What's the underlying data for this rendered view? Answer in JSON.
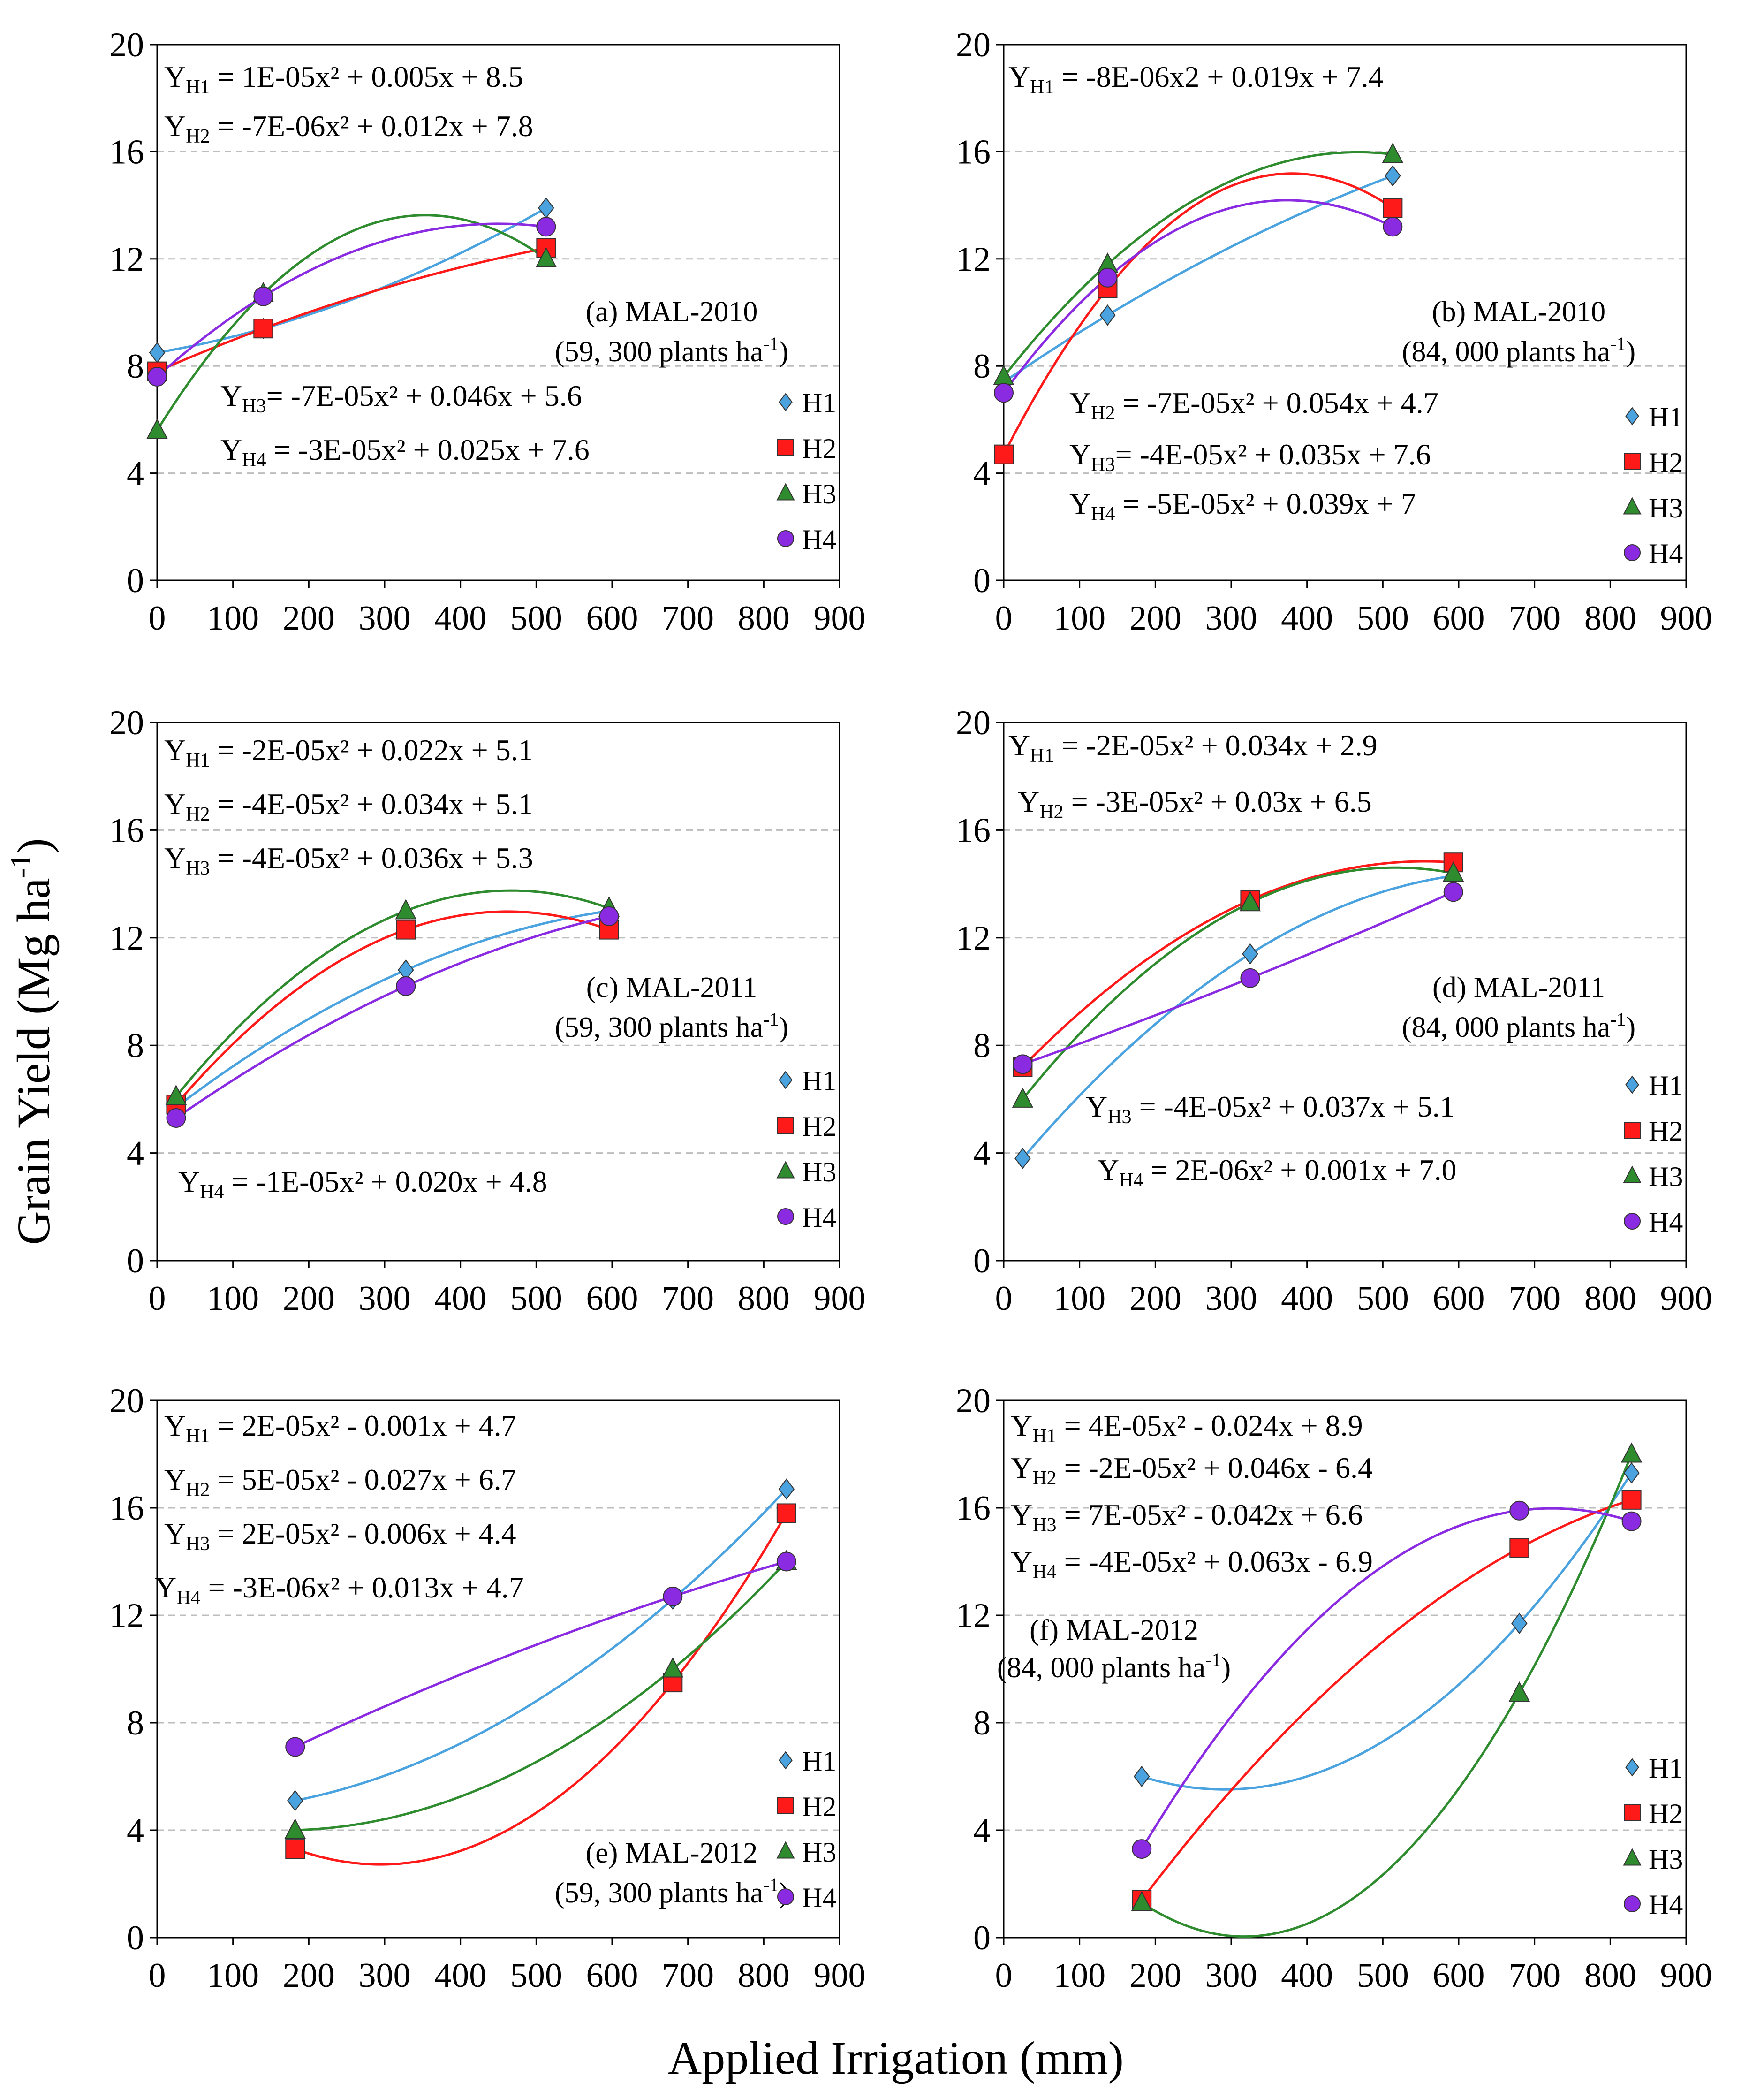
{
  "figure": {
    "xlabel": "Applied Irrigation (mm)",
    "ylabel_main": "Grain Yield (Mg ha",
    "ylabel_sup": "-1",
    "ylabel_close": ")"
  },
  "series_styles": {
    "H1": {
      "marker": "diamond",
      "fill": "#4aa3df",
      "line": "#4aa3df"
    },
    "H2": {
      "marker": "square",
      "fill": "#ff1a1a",
      "line": "#ff1a1a"
    },
    "H3": {
      "marker": "triangle",
      "fill": "#2e8b2e",
      "line": "#2e8b2e"
    },
    "H4": {
      "marker": "circle",
      "fill": "#8a2be2",
      "line": "#8a2be2"
    }
  },
  "chart_data": [
    {
      "type": "scatter",
      "title": "(a) MAL-2010",
      "subtitle": "(59, 300 plants ha",
      "xlim": [
        0,
        900
      ],
      "ylim": [
        0,
        20
      ],
      "xticks": [
        "0",
        "100",
        "200",
        "300",
        "400",
        "500",
        "600",
        "700",
        "800",
        "900"
      ],
      "yticks": [
        "0",
        "4",
        "8",
        "12",
        "16",
        "20"
      ],
      "legend": "right",
      "series": [
        {
          "name": "H1",
          "x": [
            0,
            140,
            513
          ],
          "y": [
            8.5,
            9.4,
            13.9
          ],
          "coef": [
            1e-05,
            0.005,
            8.5
          ]
        },
        {
          "name": "H2",
          "x": [
            0,
            140,
            513
          ],
          "y": [
            7.8,
            9.4,
            12.4
          ],
          "coef": [
            -7e-06,
            0.012,
            7.8
          ]
        },
        {
          "name": "H3",
          "x": [
            0,
            140,
            513
          ],
          "y": [
            5.6,
            10.7,
            12.0
          ],
          "coef": [
            -7e-05,
            0.046,
            5.6
          ]
        },
        {
          "name": "H4",
          "x": [
            0,
            140,
            513
          ],
          "y": [
            7.6,
            10.6,
            13.2
          ],
          "coef": [
            -3e-05,
            0.025,
            7.6
          ]
        }
      ],
      "equations": [
        {
          "main": "Y",
          "sub": "H1",
          "rest": " = 1E-05x² + 0.005x + 8.5"
        },
        {
          "main": "Y",
          "sub": "H2",
          "rest": " = -7E-06x² + 0.012x + 7.8"
        },
        {
          "main": "Y",
          "sub": "H3",
          "rest": "= -7E-05x² + 0.046x + 5.6"
        },
        {
          "main": "Y",
          "sub": "H4",
          "rest": " = -3E-05x² + 0.025x + 7.6"
        }
      ]
    },
    {
      "type": "scatter",
      "title": "(b) MAL-2010",
      "subtitle": "(84, 000 plants ha",
      "xlim": [
        0,
        900
      ],
      "ylim": [
        0,
        20
      ],
      "xticks": [
        "0",
        "100",
        "200",
        "300",
        "400",
        "500",
        "600",
        "700",
        "800",
        "900"
      ],
      "yticks": [
        "0",
        "4",
        "8",
        "12",
        "16",
        "20"
      ],
      "legend": "right",
      "series": [
        {
          "name": "H1",
          "x": [
            0,
            137,
            513
          ],
          "y": [
            7.4,
            9.9,
            15.1
          ],
          "coef": [
            -8e-06,
            0.019,
            7.4
          ]
        },
        {
          "name": "H2",
          "x": [
            0,
            137,
            513
          ],
          "y": [
            4.7,
            10.9,
            13.9
          ],
          "coef": [
            -7e-05,
            0.054,
            4.7
          ]
        },
        {
          "name": "H3",
          "x": [
            0,
            137,
            513
          ],
          "y": [
            7.6,
            11.8,
            15.9
          ],
          "coef": [
            -4e-05,
            0.035,
            7.6
          ]
        },
        {
          "name": "H4",
          "x": [
            0,
            137,
            513
          ],
          "y": [
            7.0,
            11.3,
            13.2
          ],
          "coef": [
            -5e-05,
            0.039,
            7.0
          ]
        }
      ],
      "equations": [
        {
          "main": "Y",
          "sub": "H1",
          "rest": " = -8E-06x2 + 0.019x + 7.4"
        },
        {
          "main": "Y",
          "sub": "H2",
          "rest": " = -7E-05x² + 0.054x + 4.7"
        },
        {
          "main": "Y",
          "sub": "H3",
          "rest": "= -4E-05x² + 0.035x + 7.6"
        },
        {
          "main": "Y",
          "sub": "H4",
          "rest": " = -5E-05x² + 0.039x + 7"
        }
      ]
    },
    {
      "type": "scatter",
      "title": "(c) MAL-2011",
      "subtitle": "(59, 300 plants ha",
      "xlim": [
        0,
        900
      ],
      "ylim": [
        0,
        20
      ],
      "xticks": [
        "0",
        "100",
        "200",
        "300",
        "400",
        "500",
        "600",
        "700",
        "800",
        "900"
      ],
      "yticks": [
        "0",
        "4",
        "8",
        "12",
        "16",
        "20"
      ],
      "legend": "right",
      "series": [
        {
          "name": "H1",
          "x": [
            25,
            328,
            596
          ],
          "y": [
            5.7,
            10.8,
            13.0
          ],
          "coef": [
            -2e-05,
            0.022,
            5.1
          ]
        },
        {
          "name": "H2",
          "x": [
            25,
            328,
            596
          ],
          "y": [
            5.8,
            12.3,
            12.3
          ],
          "coef": [
            -4e-05,
            0.034,
            5.1
          ]
        },
        {
          "name": "H3",
          "x": [
            25,
            328,
            596
          ],
          "y": [
            6.1,
            13.0,
            13.1
          ],
          "coef": [
            -4e-05,
            0.036,
            5.3
          ]
        },
        {
          "name": "H4",
          "x": [
            25,
            328,
            596
          ],
          "y": [
            5.3,
            10.2,
            12.8
          ],
          "coef": [
            -1e-05,
            0.02,
            4.8
          ]
        }
      ],
      "equations": [
        {
          "main": "Y",
          "sub": "H1",
          "rest": " = -2E-05x² + 0.022x + 5.1"
        },
        {
          "main": "Y",
          "sub": "H2",
          "rest": " = -4E-05x² + 0.034x + 5.1"
        },
        {
          "main": "Y",
          "sub": "H3",
          "rest": " = -4E-05x² + 0.036x + 5.3"
        },
        {
          "main": "Y",
          "sub": "H4",
          "rest": " = -1E-05x² + 0.020x + 4.8"
        }
      ]
    },
    {
      "type": "scatter",
      "title": "(d) MAL-2011",
      "subtitle": "(84, 000 plants ha",
      "xlim": [
        0,
        900
      ],
      "ylim": [
        0,
        20
      ],
      "xticks": [
        "0",
        "100",
        "200",
        "300",
        "400",
        "500",
        "600",
        "700",
        "800",
        "900"
      ],
      "yticks": [
        "0",
        "4",
        "8",
        "12",
        "16",
        "20"
      ],
      "legend": "right",
      "series": [
        {
          "name": "H1",
          "x": [
            25,
            325,
            593
          ],
          "y": [
            3.8,
            11.4,
            14.3
          ],
          "coef": [
            -2e-05,
            0.034,
            2.9
          ]
        },
        {
          "name": "H2",
          "x": [
            25,
            325,
            593
          ],
          "y": [
            7.2,
            13.4,
            14.8
          ],
          "coef": [
            -3e-05,
            0.03,
            6.5
          ]
        },
        {
          "name": "H3",
          "x": [
            25,
            325,
            593
          ],
          "y": [
            6.0,
            13.3,
            14.4
          ],
          "coef": [
            -4e-05,
            0.037,
            5.1
          ]
        },
        {
          "name": "H4",
          "x": [
            25,
            325,
            593
          ],
          "y": [
            7.3,
            10.5,
            13.7
          ],
          "coef": [
            2e-06,
            0.001,
            7.0
          ]
        }
      ],
      "equations": [
        {
          "main": "Y",
          "sub": "H1",
          "rest": " = -2E-05x² + 0.034x + 2.9"
        },
        {
          "main": "Y",
          "sub": "H2",
          "rest": " = -3E-05x² + 0.03x + 6.5"
        },
        {
          "main": "Y",
          "sub": "H3",
          "rest": " = -4E-05x² + 0.037x + 5.1"
        },
        {
          "main": "Y",
          "sub": "H4",
          "rest": " = 2E-06x² + 0.001x + 7.0"
        }
      ]
    },
    {
      "type": "scatter",
      "title": "(e) MAL-2012",
      "subtitle": "(59, 300 plants ha",
      "xlim": [
        0,
        900
      ],
      "ylim": [
        0,
        20
      ],
      "xticks": [
        "0",
        "100",
        "200",
        "300",
        "400",
        "500",
        "600",
        "700",
        "800",
        "900"
      ],
      "yticks": [
        "0",
        "4",
        "8",
        "12",
        "16",
        "20"
      ],
      "legend": "right",
      "series": [
        {
          "name": "H1",
          "x": [
            182,
            680,
            830
          ],
          "y": [
            5.1,
            12.6,
            16.7
          ],
          "coef": [
            2e-05,
            -0.001,
            4.7
          ]
        },
        {
          "name": "H2",
          "x": [
            182,
            680,
            830
          ],
          "y": [
            3.3,
            9.5,
            15.8
          ],
          "coef": [
            5e-05,
            -0.027,
            6.7
          ]
        },
        {
          "name": "H3",
          "x": [
            182,
            680,
            830
          ],
          "y": [
            4.0,
            10.0,
            14.0
          ],
          "coef": [
            2e-05,
            -0.006,
            4.4
          ]
        },
        {
          "name": "H4",
          "x": [
            182,
            680,
            830
          ],
          "y": [
            7.1,
            12.7,
            14.0
          ],
          "coef": [
            -3e-06,
            0.013,
            4.7
          ]
        }
      ],
      "equations": [
        {
          "main": "Y",
          "sub": "H1",
          "rest": " = 2E-05x² - 0.001x + 4.7"
        },
        {
          "main": "Y",
          "sub": "H2",
          "rest": " = 5E-05x² - 0.027x + 6.7"
        },
        {
          "main": "Y",
          "sub": "H3",
          "rest": " = 2E-05x² - 0.006x + 4.4"
        },
        {
          "main": "Y",
          "sub": "H4",
          "rest": " = -3E-06x² + 0.013x + 4.7"
        }
      ]
    },
    {
      "type": "scatter",
      "title": "(f) MAL-2012",
      "subtitle": "(84, 000 plants ha",
      "xlim": [
        0,
        900
      ],
      "ylim": [
        0,
        20
      ],
      "xticks": [
        "0",
        "100",
        "200",
        "300",
        "400",
        "500",
        "600",
        "700",
        "800",
        "900"
      ],
      "yticks": [
        "0",
        "4",
        "8",
        "12",
        "16",
        "20"
      ],
      "legend": "right",
      "series": [
        {
          "name": "H1",
          "x": [
            182,
            680,
            828
          ],
          "y": [
            6.0,
            11.7,
            17.3
          ],
          "coef": [
            4e-05,
            -0.024,
            8.9
          ]
        },
        {
          "name": "H2",
          "x": [
            182,
            680,
            828
          ],
          "y": [
            1.4,
            14.5,
            16.3
          ],
          "coef": [
            -2e-05,
            0.046,
            -6.4
          ]
        },
        {
          "name": "H3",
          "x": [
            182,
            680,
            828
          ],
          "y": [
            1.3,
            9.1,
            18.0
          ],
          "coef": [
            7e-05,
            -0.042,
            6.6
          ]
        },
        {
          "name": "H4",
          "x": [
            182,
            680,
            828
          ],
          "y": [
            3.3,
            15.9,
            15.5
          ],
          "coef": [
            -4e-05,
            0.063,
            -6.9
          ]
        }
      ],
      "equations": [
        {
          "main": "Y",
          "sub": "H1",
          "rest": " = 4E-05x² - 0.024x + 8.9"
        },
        {
          "main": "Y",
          "sub": "H2",
          "rest": " = -2E-05x² + 0.046x - 6.4"
        },
        {
          "main": "Y",
          "sub": "H3",
          "rest": " = 7E-05x² - 0.042x + 6.6"
        },
        {
          "main": "Y",
          "sub": "H4",
          "rest": " = -4E-05x² + 0.063x - 6.9"
        }
      ]
    }
  ]
}
